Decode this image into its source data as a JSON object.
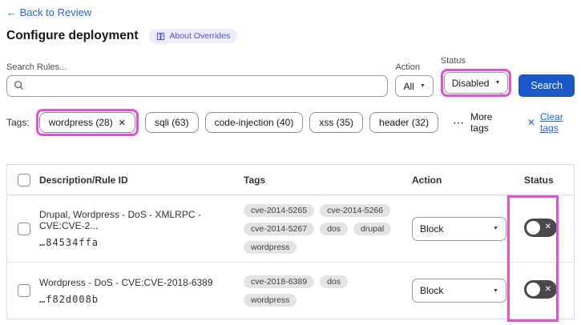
{
  "header": {
    "back_link": "← Back to Review",
    "title": "Configure deployment",
    "about_badge": "About Overrides"
  },
  "filters": {
    "search_label": "Search Rules...",
    "search_value": "",
    "action_label": "Action",
    "action_value": "All",
    "status_label": "Status",
    "status_value": "Disabled",
    "search_button": "Search"
  },
  "tags_bar": {
    "label": "Tags:",
    "selected_tag": "wordpress (28)",
    "tags": [
      "sqli (63)",
      "code-injection (40)",
      "xss (35)",
      "header (32)"
    ],
    "more_tags_label": "More tags",
    "clear_tags_label": "Clear tags"
  },
  "table": {
    "columns": [
      "Description/Rule ID",
      "Tags",
      "Action",
      "Status"
    ],
    "rows": [
      {
        "description": "Drupal, Wordpress - DoS - XMLRPC - CVE:CVE-2...",
        "rule_id": "…84534ffa",
        "tags": [
          "cve-2014-5265",
          "cve-2014-5266",
          "cve-2014-5267",
          "dos",
          "drupal",
          "wordpress"
        ],
        "action": "Block",
        "status": "disabled"
      },
      {
        "description": "Wordpress - DoS - CVE:CVE-2018-6389",
        "rule_id": "…f82d008b",
        "tags": [
          "cve-2018-6389",
          "dos",
          "wordpress"
        ],
        "action": "Block",
        "status": "disabled"
      }
    ]
  },
  "icons": {
    "dropdown_arrow": "▼",
    "ellipsis": "⋯",
    "close": "✕",
    "toggle_x": "✕"
  },
  "colors": {
    "highlight_magenta": "#e44fd4",
    "button_blue": "#1a57c9",
    "link_blue": "#2468d4",
    "badge_bg": "#ebebfb",
    "badge_text": "#5254cf",
    "toggle_off_bg": "#47494d"
  }
}
